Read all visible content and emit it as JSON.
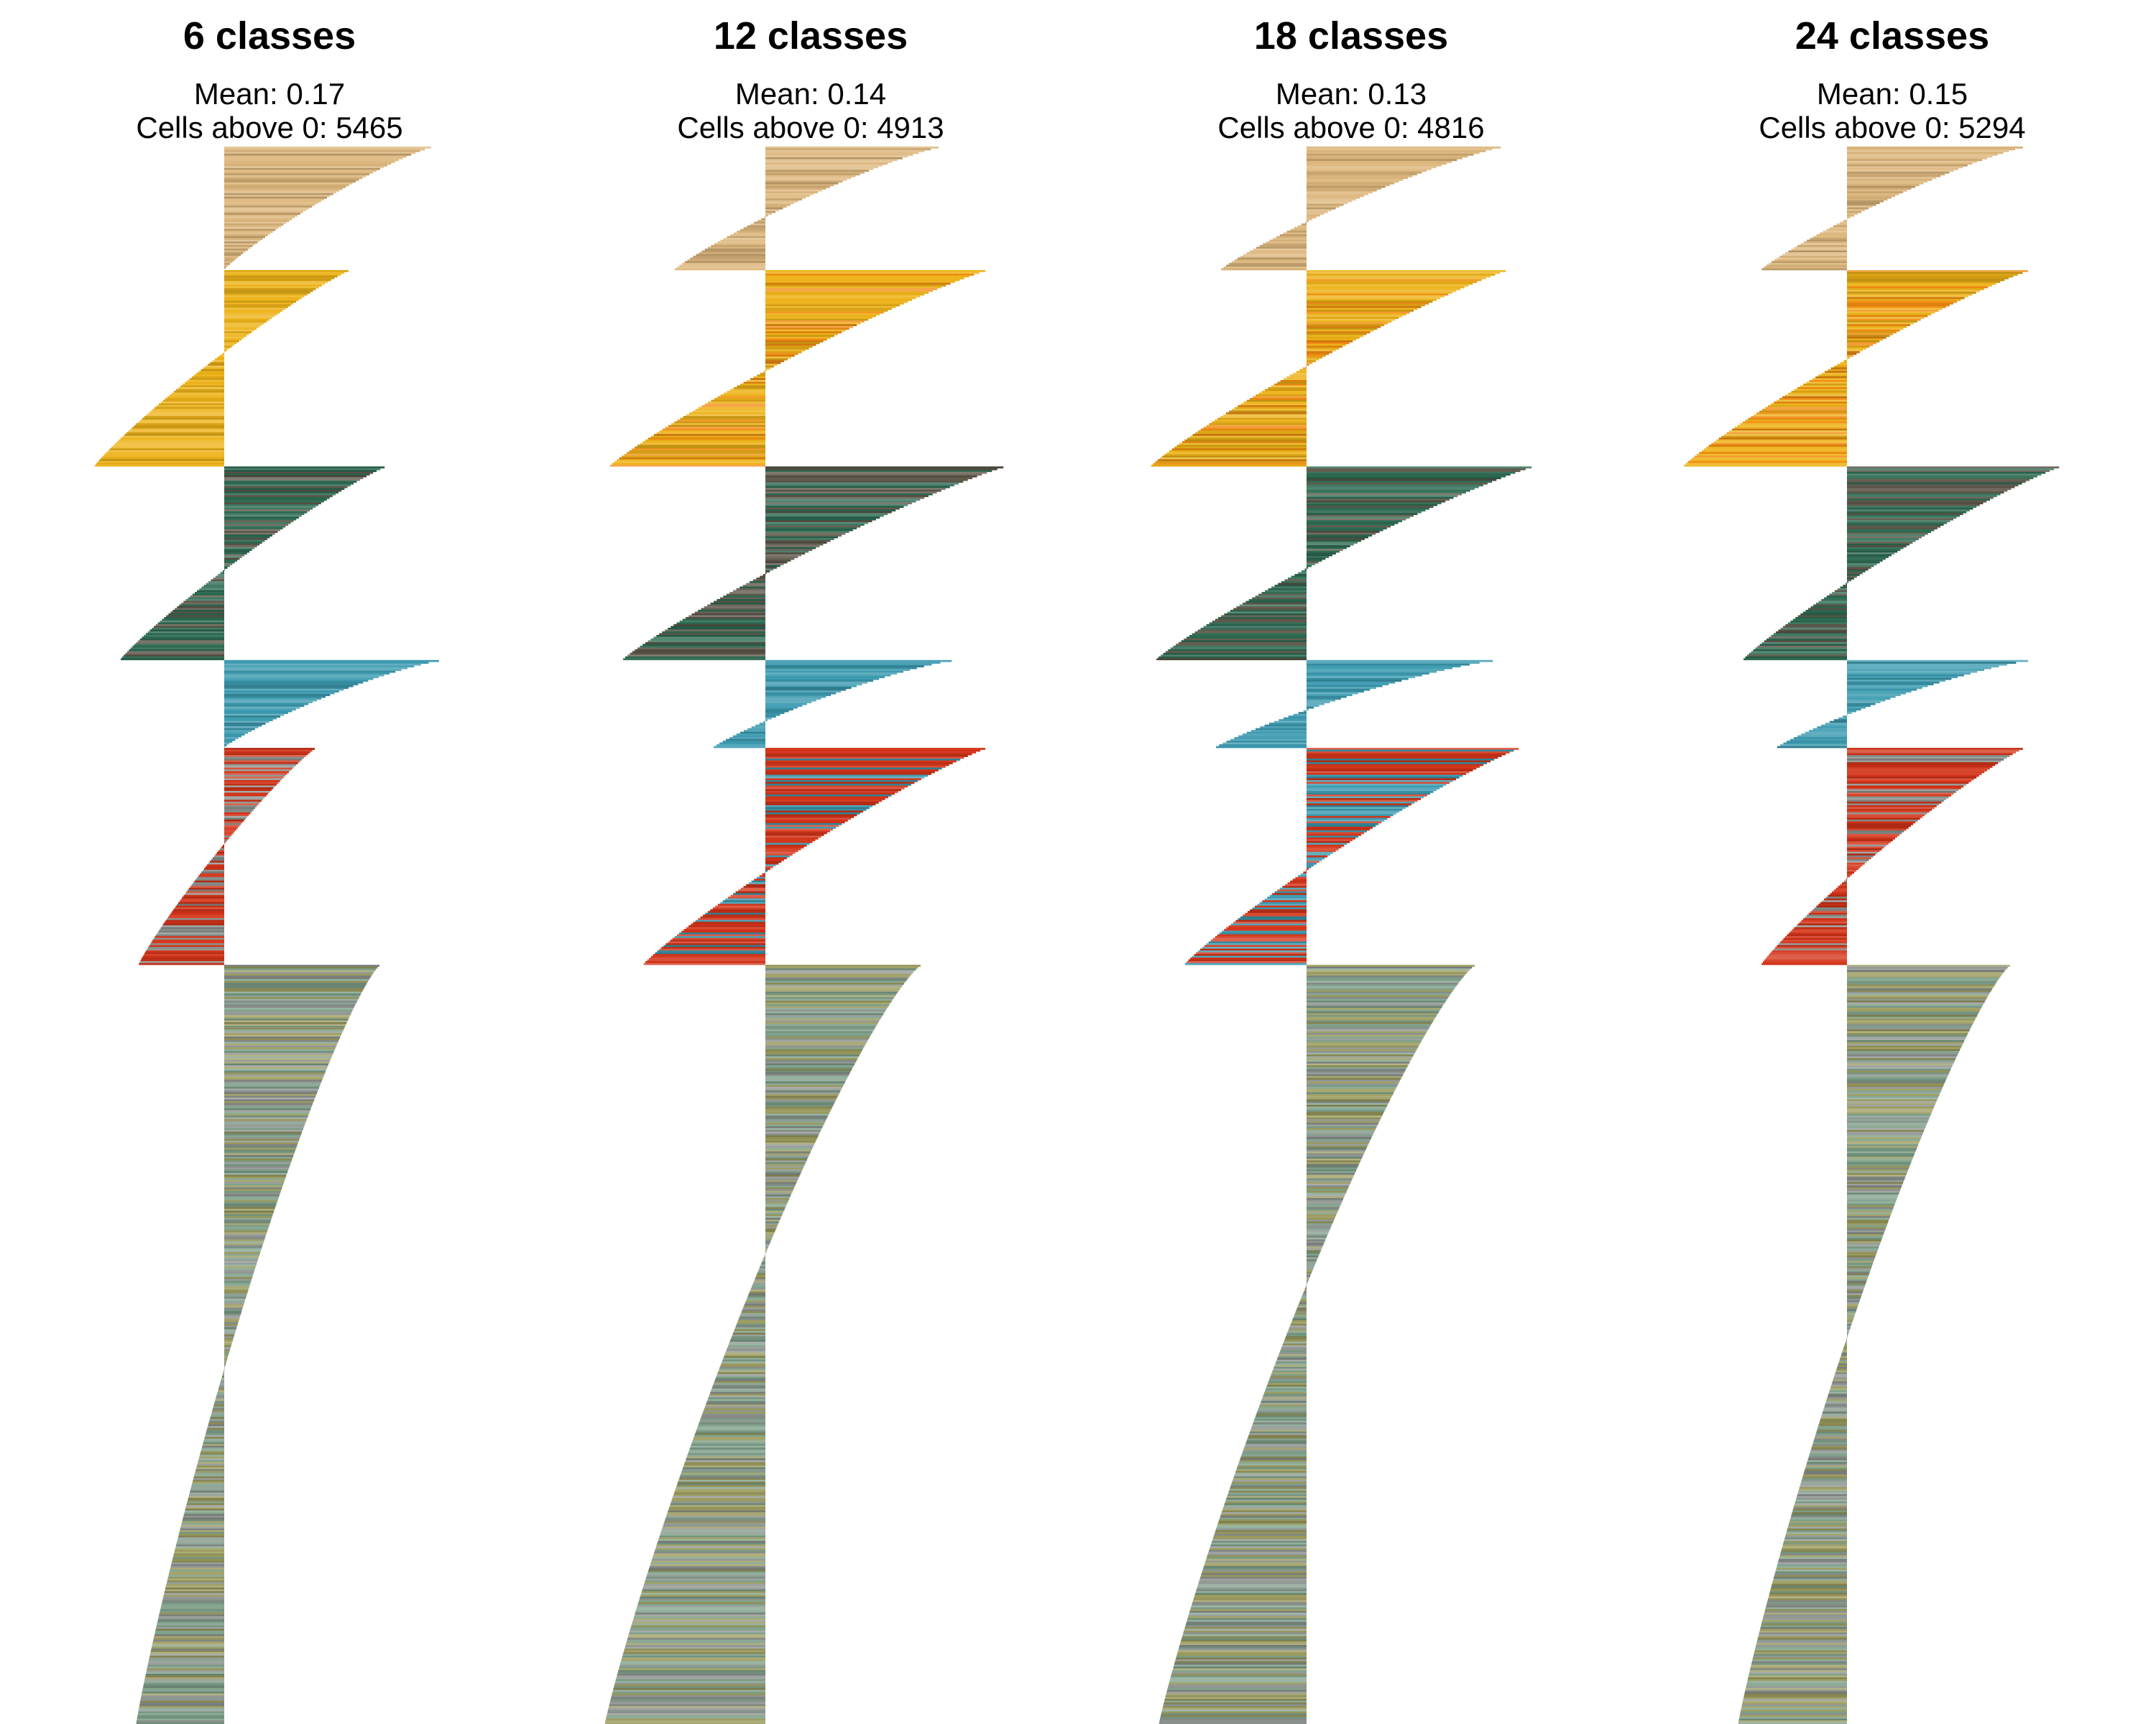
{
  "chart_data": {
    "type": "silhouette",
    "bar_orientation": "horizontal",
    "grid": false,
    "legend": "none",
    "xlim": [
      -0.65,
      0.85
    ],
    "colors": {
      "tan": "#DDB77D",
      "yellow": "#EDB217",
      "orange": "#F28C10",
      "charcoal": "#5C5548",
      "green": "#2E6B53",
      "blue": "#3C9AB0",
      "red": "#D43318",
      "olive": "#9A9A5E",
      "grey": "#8E9490",
      "sage": "#7FA08A"
    },
    "panels": [
      {
        "title": "6 classes",
        "mean_label": "Mean: 0.17",
        "cells_label": "Cells above 0: 5465",
        "clusters": [
          {
            "size": 90,
            "min": 0.0,
            "max": 0.8,
            "color": "tan",
            "mix": [
              "tan"
            ]
          },
          {
            "size": 143,
            "min": -0.5,
            "max": 0.48,
            "color": "yellow",
            "mix": [
              "yellow"
            ]
          },
          {
            "size": 141,
            "min": -0.4,
            "max": 0.62,
            "color": "charcoal",
            "mix": [
              "charcoal",
              "green",
              "green"
            ]
          },
          {
            "size": 64,
            "min": 0.0,
            "max": 0.83,
            "color": "blue",
            "mix": [
              "blue"
            ]
          },
          {
            "size": 158,
            "min": -0.33,
            "max": 0.35,
            "color": "red",
            "mix": [
              "red",
              "red",
              "grey"
            ]
          },
          {
            "size": 553,
            "min": -0.34,
            "max": 0.6,
            "color": "olive",
            "mix": [
              "olive",
              "grey",
              "sage"
            ]
          }
        ]
      },
      {
        "title": "12 classes",
        "mean_label": "Mean: 0.14",
        "cells_label": "Cells above 0: 4913",
        "clusters": [
          {
            "size": 90,
            "min": -0.35,
            "max": 0.67,
            "color": "tan",
            "mix": [
              "tan"
            ]
          },
          {
            "size": 143,
            "min": -0.6,
            "max": 0.85,
            "color": "yellow",
            "mix": [
              "orange",
              "yellow",
              "yellow"
            ]
          },
          {
            "size": 141,
            "min": -0.55,
            "max": 0.92,
            "color": "charcoal",
            "mix": [
              "charcoal",
              "green"
            ]
          },
          {
            "size": 64,
            "min": -0.2,
            "max": 0.72,
            "color": "blue",
            "mix": [
              "blue"
            ]
          },
          {
            "size": 158,
            "min": -0.47,
            "max": 0.85,
            "color": "red",
            "mix": [
              "blue",
              "red",
              "red"
            ]
          },
          {
            "size": 553,
            "min": -0.62,
            "max": 0.6,
            "color": "olive",
            "mix": [
              "olive",
              "grey",
              "sage"
            ]
          }
        ]
      },
      {
        "title": "18 classes",
        "mean_label": "Mean: 0.13",
        "cells_label": "Cells above 0: 4816",
        "clusters": [
          {
            "size": 90,
            "min": -0.33,
            "max": 0.75,
            "color": "tan",
            "mix": [
              "tan"
            ]
          },
          {
            "size": 143,
            "min": -0.6,
            "max": 0.77,
            "color": "yellow",
            "mix": [
              "orange",
              "yellow",
              "yellow"
            ]
          },
          {
            "size": 141,
            "min": -0.58,
            "max": 0.87,
            "color": "charcoal",
            "mix": [
              "charcoal",
              "green",
              "green"
            ]
          },
          {
            "size": 64,
            "min": -0.35,
            "max": 0.72,
            "color": "blue",
            "mix": [
              "blue"
            ]
          },
          {
            "size": 158,
            "min": -0.47,
            "max": 0.82,
            "color": "red",
            "mix": [
              "blue",
              "red",
              "red"
            ]
          },
          {
            "size": 553,
            "min": -0.57,
            "max": 0.65,
            "color": "olive",
            "mix": [
              "olive",
              "grey",
              "sage"
            ]
          }
        ]
      },
      {
        "title": "24 classes",
        "mean_label": "Mean: 0.15",
        "cells_label": "Cells above 0: 5294",
        "clusters": [
          {
            "size": 90,
            "min": -0.33,
            "max": 0.68,
            "color": "tan",
            "mix": [
              "tan"
            ]
          },
          {
            "size": 143,
            "min": -0.63,
            "max": 0.7,
            "color": "yellow",
            "mix": [
              "orange",
              "yellow",
              "yellow"
            ]
          },
          {
            "size": 141,
            "min": -0.4,
            "max": 0.82,
            "color": "charcoal",
            "mix": [
              "charcoal",
              "green",
              "green"
            ]
          },
          {
            "size": 64,
            "min": -0.27,
            "max": 0.7,
            "color": "blue",
            "mix": [
              "blue"
            ]
          },
          {
            "size": 158,
            "min": -0.33,
            "max": 0.68,
            "color": "red",
            "mix": [
              "grey",
              "red",
              "red"
            ]
          },
          {
            "size": 553,
            "min": -0.42,
            "max": 0.63,
            "color": "olive",
            "mix": [
              "olive",
              "grey",
              "sage"
            ]
          }
        ]
      }
    ]
  }
}
